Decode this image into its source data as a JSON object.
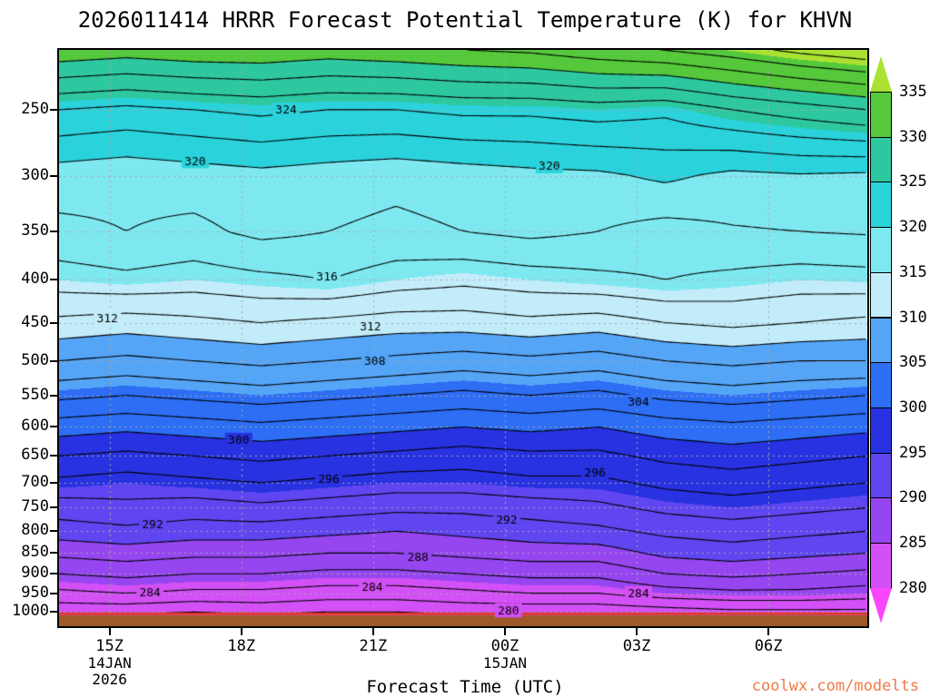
{
  "title": "2026011414 HRRR Forecast Potential Temperature (K) for KHVN",
  "xlabel": "Forecast Time (UTC)",
  "watermark": "coolwx.com/modelts",
  "chart_data": {
    "type": "contour",
    "t_min": 0,
    "t_max": 18.4,
    "x_hours": [
      0,
      1.53,
      3.07,
      4.6,
      6.13,
      7.67,
      9.2,
      10.73,
      12.27,
      13.8,
      15.33,
      16.87,
      18.4
    ],
    "x_ticks": [
      {
        "hour": 1.15,
        "label": "15Z",
        "sub": [
          "14JAN",
          "2026"
        ]
      },
      {
        "hour": 4.15,
        "label": "18Z",
        "sub": []
      },
      {
        "hour": 7.15,
        "label": "21Z",
        "sub": []
      },
      {
        "hour": 10.15,
        "label": "00Z",
        "sub": [
          "15JAN"
        ]
      },
      {
        "hour": 13.15,
        "label": "03Z",
        "sub": []
      },
      {
        "hour": 16.15,
        "label": "06Z",
        "sub": []
      }
    ],
    "y_ticks": [
      250,
      300,
      350,
      400,
      450,
      500,
      550,
      600,
      650,
      700,
      750,
      800,
      850,
      900,
      950,
      1000
    ],
    "p_top": 212,
    "p_bottom": 1040,
    "surface_pressure": 1008,
    "pressure_levels": [
      205,
      250,
      300,
      350,
      400,
      450,
      500,
      550,
      600,
      650,
      700,
      750,
      800,
      850,
      900,
      950,
      1000,
      1035
    ],
    "field": [
      [
        333,
        332.5,
        333,
        333,
        332.5,
        333,
        333.5,
        334,
        335,
        336,
        337,
        338.5,
        339.5
      ],
      [
        324,
        323.5,
        324,
        324.5,
        324,
        324,
        324.5,
        324.5,
        325,
        324.5,
        326,
        327,
        328
      ],
      [
        319,
        318.6,
        319,
        319.4,
        319,
        318.6,
        319,
        319.4,
        319.6,
        320.4,
        319.5,
        319.8,
        319.6
      ],
      [
        317.5,
        318,
        317.5,
        318.5,
        318,
        317.5,
        318,
        318.5,
        318,
        317.2,
        317.8,
        318,
        318.2
      ],
      [
        315,
        315.5,
        315,
        315.5,
        316,
        315,
        314.5,
        315,
        315.5,
        316,
        315.5,
        315,
        315.2
      ],
      [
        311.5,
        311,
        311.5,
        312,
        311.5,
        311,
        311,
        311.5,
        311,
        312,
        312.5,
        312,
        311.5
      ],
      [
        308,
        307.5,
        308,
        308.5,
        308,
        307.5,
        307,
        307.5,
        307,
        308,
        308.5,
        308,
        308
      ],
      [
        304.5,
        304,
        304.5,
        305,
        304.5,
        304,
        303.5,
        304,
        303.5,
        304.5,
        305,
        304.5,
        304
      ],
      [
        301,
        300.5,
        301,
        301.5,
        301,
        300.5,
        300,
        300.5,
        300,
        301,
        301.5,
        301,
        300.5
      ],
      [
        298,
        297.5,
        298,
        298.5,
        298,
        297.5,
        297,
        297.5,
        297.5,
        298.5,
        299,
        298.5,
        298
      ],
      [
        295.5,
        295,
        295.5,
        296,
        295.5,
        295,
        295,
        295.5,
        295.5,
        296.5,
        297,
        296.5,
        296
      ],
      [
        293,
        293.5,
        293,
        293.5,
        293,
        292.5,
        292.5,
        293,
        293.5,
        294.5,
        295,
        294.5,
        294
      ],
      [
        291,
        291.5,
        291,
        291,
        290.5,
        290,
        290.5,
        291,
        291.5,
        292.5,
        293,
        292.5,
        292
      ],
      [
        288.5,
        289,
        288.5,
        288.5,
        288,
        288,
        288.5,
        289,
        289,
        290.5,
        291,
        290.5,
        290
      ],
      [
        286,
        286.5,
        286,
        286,
        285.5,
        285.5,
        286,
        286.5,
        286.5,
        288,
        288.5,
        288,
        287.5
      ],
      [
        283.5,
        284,
        283.5,
        283.5,
        283,
        283,
        283.5,
        284,
        284,
        285,
        285.5,
        285.5,
        285
      ],
      [
        280.5,
        280.5,
        280,
        280.5,
        280,
        280,
        280.5,
        280.5,
        280.5,
        281,
        281.5,
        281.5,
        281.5
      ],
      [
        278,
        278,
        277.5,
        278,
        277.5,
        277.5,
        278,
        278,
        278,
        278.5,
        279,
        279.5,
        279.5
      ]
    ],
    "contour_interval": 2,
    "contour_min": 280,
    "contour_max": 338,
    "labels": [
      {
        "v": 324,
        "t": 5.17,
        "p": 250
      },
      {
        "v": 320,
        "t": 3.1,
        "p": 288
      },
      {
        "v": 320,
        "t": 11.16,
        "p": 292
      },
      {
        "v": 316,
        "t": 6.1,
        "p": 396
      },
      {
        "v": 312,
        "t": 1.1,
        "p": 444
      },
      {
        "v": 312,
        "t": 7.09,
        "p": 455
      },
      {
        "v": 308,
        "t": 7.19,
        "p": 500
      },
      {
        "v": 304,
        "t": 13.19,
        "p": 560
      },
      {
        "v": 300,
        "t": 4.09,
        "p": 622
      },
      {
        "v": 296,
        "t": 12.2,
        "p": 680
      },
      {
        "v": 296,
        "t": 6.14,
        "p": 692
      },
      {
        "v": 292,
        "t": 2.13,
        "p": 785
      },
      {
        "v": 292,
        "t": 10.19,
        "p": 775
      },
      {
        "v": 288,
        "t": 8.17,
        "p": 860
      },
      {
        "v": 284,
        "t": 2.07,
        "p": 948
      },
      {
        "v": 284,
        "t": 7.13,
        "p": 932
      },
      {
        "v": 284,
        "t": 13.19,
        "p": 950
      },
      {
        "v": 280,
        "t": 10.23,
        "p": 995
      }
    ],
    "colorbar": {
      "tick_values": [
        280,
        285,
        290,
        295,
        300,
        305,
        310,
        315,
        320,
        325,
        330,
        335
      ],
      "colors": [
        "#fa46fa",
        "#d250f5",
        "#9646f0",
        "#5f46f0",
        "#2832e1",
        "#2d6ef5",
        "#55a5f7",
        "#c3ecfa",
        "#7ee8f0",
        "#2ad2dc",
        "#2ec8a0",
        "#55c83c",
        "#aae132"
      ]
    },
    "underground_color": "#9e5a28",
    "surface_line_color": "#e03818",
    "grid_color": "#a8a8a8"
  }
}
